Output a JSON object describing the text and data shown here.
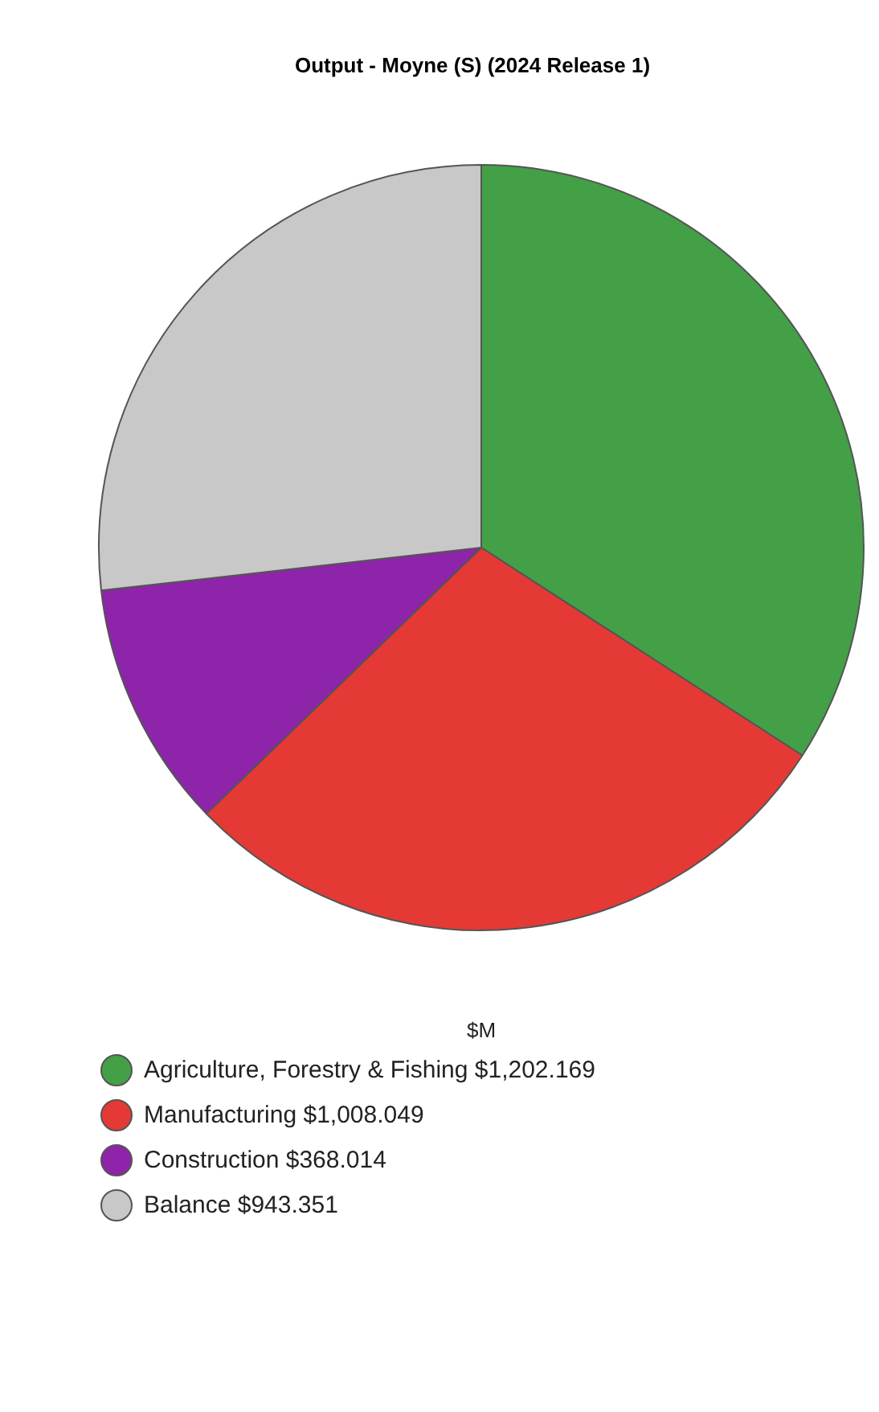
{
  "chart_data": {
    "type": "pie",
    "title": "Output - Moyne (S) (2024 Release 1)",
    "xlabel": "$M",
    "categories": [
      "Agriculture, Forestry & Fishing",
      "Manufacturing",
      "Construction",
      "Balance"
    ],
    "values": [
      1202.169,
      1008.049,
      368.014,
      943.351
    ],
    "value_labels": [
      "$1,202.169",
      "$1,008.049",
      "$368.014",
      "$943.351"
    ],
    "colors": [
      "#43a047",
      "#e53935",
      "#8e24aa",
      "#c8c8c8"
    ],
    "legend": "bottom"
  }
}
